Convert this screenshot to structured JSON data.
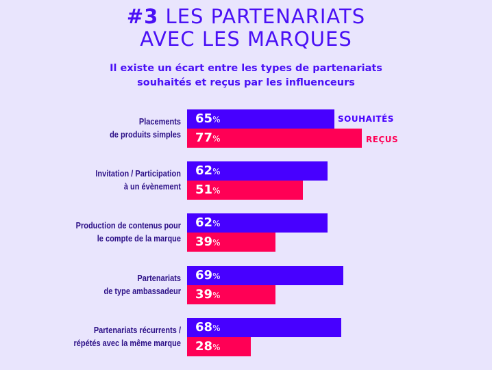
{
  "title": {
    "number": "#3",
    "line1_rest": "LES PARTENARIATS",
    "line2": "AVEC LES MARQUES"
  },
  "subtitle": {
    "line1": "Il existe un écart entre les types de partenariats",
    "line2": "souhaités et reçus par les influenceurs"
  },
  "colors": {
    "souhaites": "#4700ff",
    "recus": "#ff0055",
    "background": "#e9e5fd",
    "title": "#4a10f5",
    "label": "#2b0f86"
  },
  "chart_data": {
    "type": "bar",
    "orientation": "horizontal",
    "title": "#3 LES PARTENARIATS AVEC LES MARQUES",
    "subtitle": "Il existe un écart entre les types de partenariats souhaités et reçus par les influenceurs",
    "unit": "%",
    "xlim": [
      0,
      100
    ],
    "grid": false,
    "legend": "inline-right-of-first-group",
    "categories": [
      {
        "line1": "Placements",
        "line2": "de produits simples"
      },
      {
        "line1": "Invitation / Participation",
        "line2": "à un évènement"
      },
      {
        "line1": "Production de contenus pour",
        "line2": "le compte de la marque"
      },
      {
        "line1": "Partenariats",
        "line2": "de type ambassadeur"
      },
      {
        "line1": "Partenariats récurrents /",
        "line2": "répétés avec la même marque"
      }
    ],
    "series": [
      {
        "name": "SOUHAITÉS",
        "key": "souhaites",
        "values": [
          65,
          62,
          62,
          69,
          68
        ]
      },
      {
        "name": "REÇUS",
        "key": "recus",
        "values": [
          77,
          51,
          39,
          39,
          28
        ]
      }
    ]
  }
}
